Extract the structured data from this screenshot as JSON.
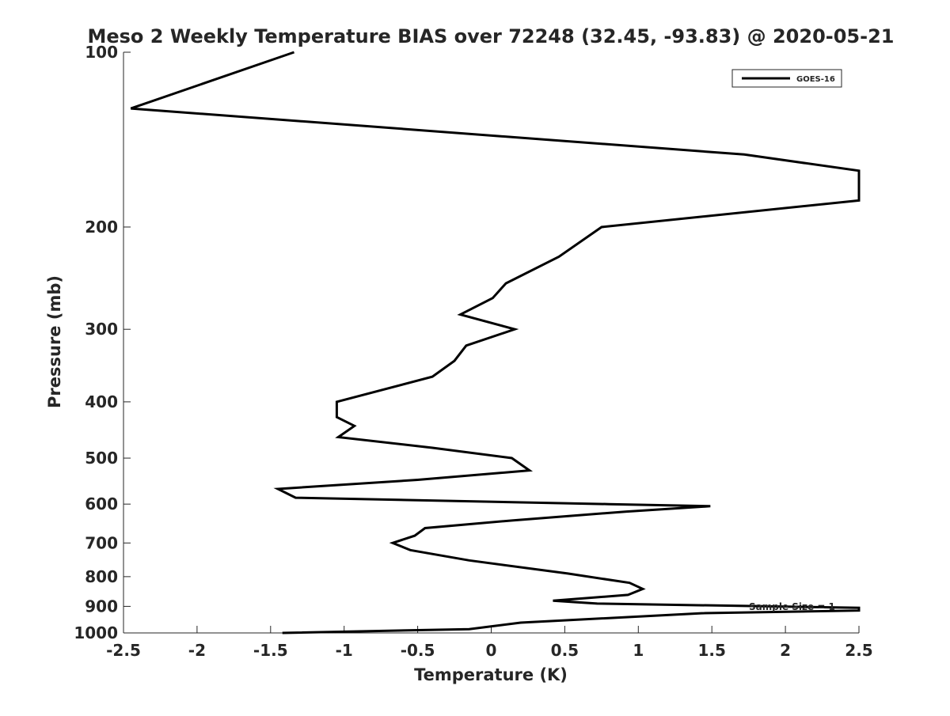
{
  "chart_data": {
    "type": "line",
    "title": "Meso 2 Weekly Temperature BIAS over 72248 (32.45, -93.83) @ 2020-05-21",
    "xlabel": "Temperature (K)",
    "ylabel": "Pressure (mb)",
    "xlim": [
      -2.5,
      2.5
    ],
    "ylim": [
      100,
      1000
    ],
    "y_scale": "log",
    "y_reversed": true,
    "grid": false,
    "legend_position": "top-right",
    "xticks": [
      -2.5,
      -2,
      -1.5,
      -1,
      -0.5,
      0,
      0.5,
      1,
      1.5,
      2,
      2.5
    ],
    "xtick_labels": [
      "-2.5",
      "-2",
      "-1.5",
      "-1",
      "-0.5",
      "0",
      "0.5",
      "1",
      "1.5",
      "2",
      "2.5"
    ],
    "yticks": [
      100,
      200,
      300,
      400,
      500,
      600,
      700,
      800,
      900,
      1000
    ],
    "ytick_labels": [
      "100",
      "200",
      "300",
      "400",
      "500",
      "600",
      "700",
      "800",
      "900",
      "1000"
    ],
    "annotation": "Sample Size = 1",
    "series": [
      {
        "name": "GOES-16",
        "color": "#000000",
        "points": [
          [
            -1.34,
            100
          ],
          [
            -2.45,
            125
          ],
          [
            1.72,
            150
          ],
          [
            2.5,
            160
          ],
          [
            2.5,
            180
          ],
          [
            0.75,
            200
          ],
          [
            0.46,
            225
          ],
          [
            0.1,
            250
          ],
          [
            0.01,
            265
          ],
          [
            -0.21,
            283
          ],
          [
            0.16,
            300
          ],
          [
            -0.17,
            320
          ],
          [
            -0.25,
            340
          ],
          [
            -0.4,
            362
          ],
          [
            -1.05,
            400
          ],
          [
            -1.05,
            425
          ],
          [
            -0.93,
            440
          ],
          [
            -1.04,
            460
          ],
          [
            -0.4,
            480
          ],
          [
            0.14,
            500
          ],
          [
            0.26,
            525
          ],
          [
            -0.5,
            545
          ],
          [
            -1.45,
            565
          ],
          [
            -1.33,
            585
          ],
          [
            0.8,
            600
          ],
          [
            1.49,
            605
          ],
          [
            0.92,
            618
          ],
          [
            0.15,
            640
          ],
          [
            -0.45,
            660
          ],
          [
            -0.52,
            680
          ],
          [
            -0.67,
            700
          ],
          [
            -0.55,
            720
          ],
          [
            -0.15,
            750
          ],
          [
            0.52,
            790
          ],
          [
            0.94,
            820
          ],
          [
            1.03,
            840
          ],
          [
            0.93,
            860
          ],
          [
            0.42,
            880
          ],
          [
            0.72,
            890
          ],
          [
            2.5,
            905
          ],
          [
            2.5,
            915
          ],
          [
            1.43,
            925
          ],
          [
            0.2,
            960
          ],
          [
            -0.15,
            985
          ],
          [
            -1.42,
            1000
          ]
        ]
      }
    ]
  }
}
